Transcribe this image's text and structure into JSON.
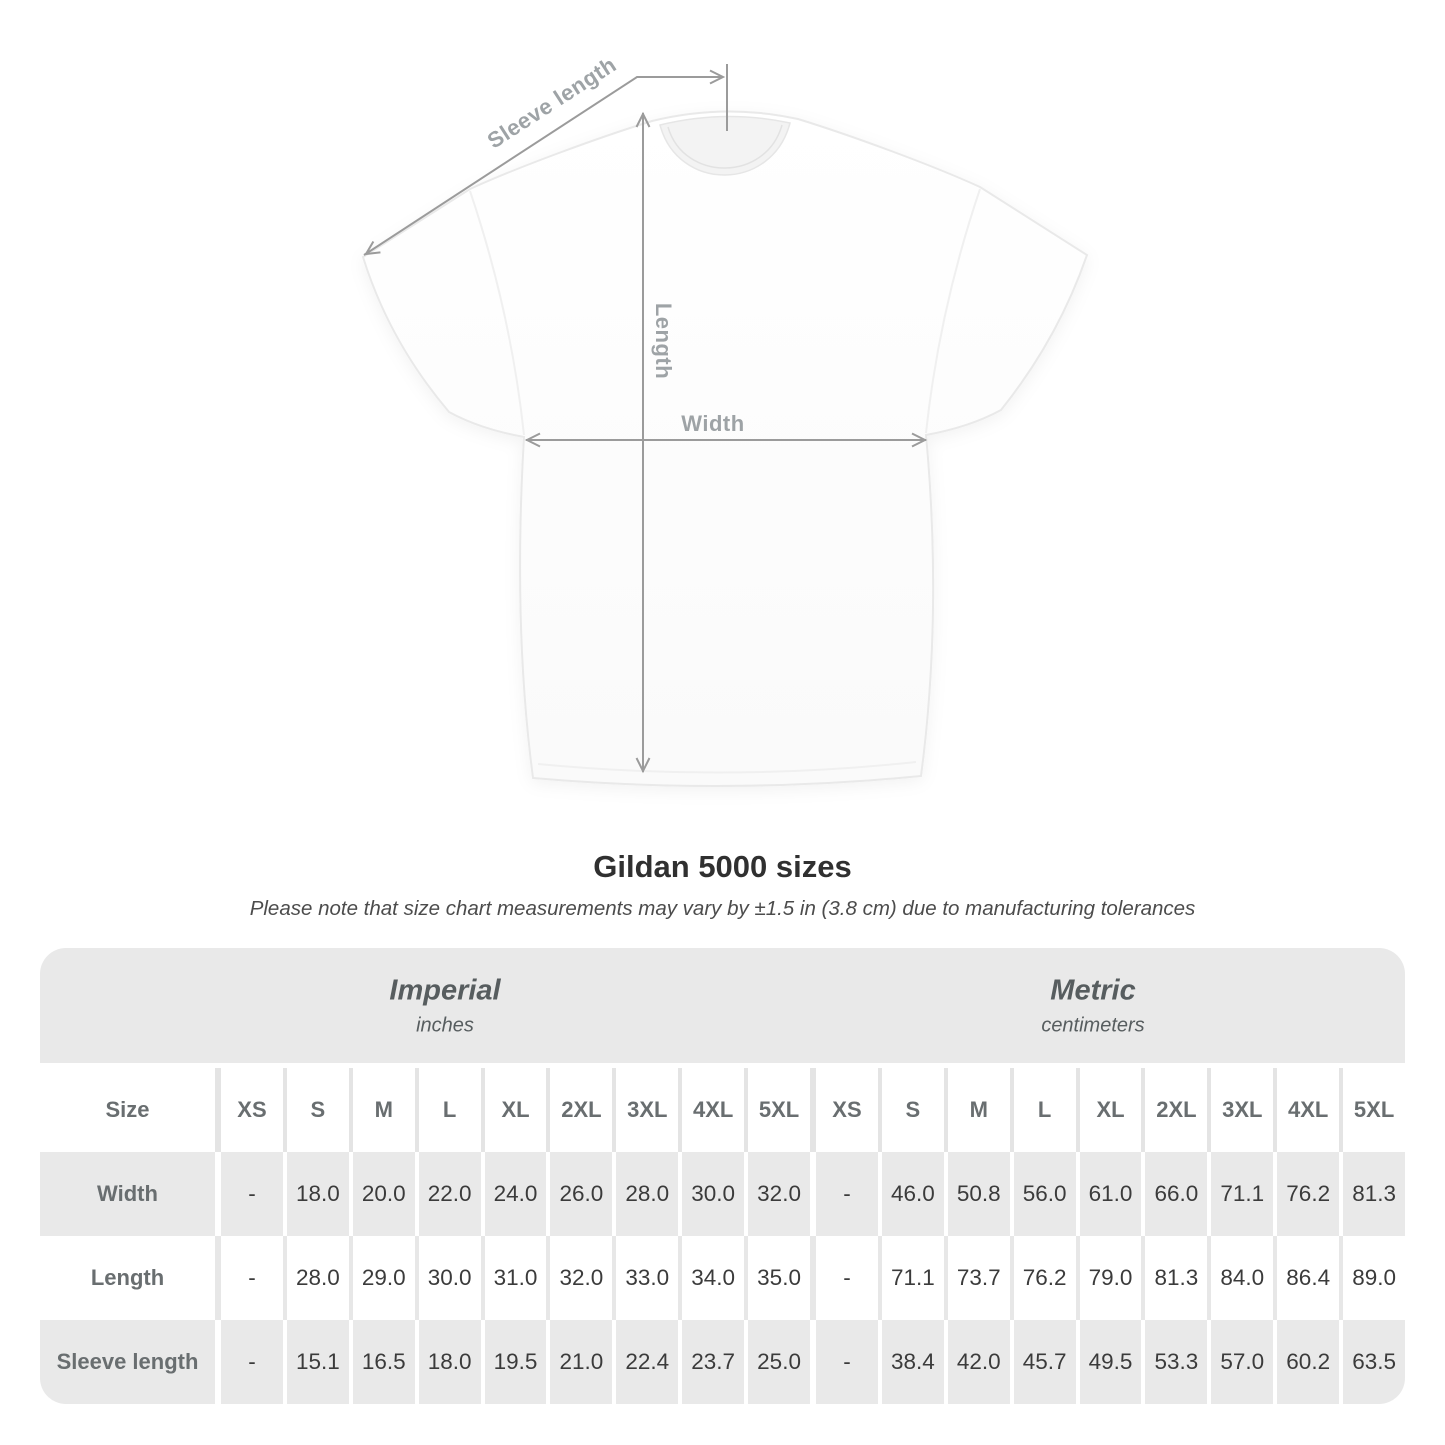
{
  "diagram": {
    "sleeve_length_label": "Sleeve length",
    "length_label": "Length",
    "width_label": "Width"
  },
  "title": "Gildan 5000 sizes",
  "subtitle": "Please note that size chart measurements may vary by ±1.5 in (3.8 cm) due to manufacturing tolerances",
  "table": {
    "size_header": "Size",
    "groups": [
      {
        "label": "Imperial",
        "sublabel": "inches"
      },
      {
        "label": "Metric",
        "sublabel": "centimeters"
      }
    ],
    "columns": [
      "XS",
      "S",
      "M",
      "L",
      "XL",
      "2XL",
      "3XL",
      "4XL",
      "5XL"
    ],
    "rows": [
      {
        "label": "Width",
        "imperial": [
          "-",
          "18.0",
          "20.0",
          "22.0",
          "24.0",
          "26.0",
          "28.0",
          "30.0",
          "32.0"
        ],
        "metric": [
          "-",
          "46.0",
          "50.8",
          "56.0",
          "61.0",
          "66.0",
          "71.1",
          "76.2",
          "81.3"
        ]
      },
      {
        "label": "Length",
        "imperial": [
          "-",
          "28.0",
          "29.0",
          "30.0",
          "31.0",
          "32.0",
          "33.0",
          "34.0",
          "35.0"
        ],
        "metric": [
          "-",
          "71.1",
          "73.7",
          "76.2",
          "79.0",
          "81.3",
          "84.0",
          "86.4",
          "89.0"
        ]
      },
      {
        "label": "Sleeve length",
        "imperial": [
          "-",
          "15.1",
          "16.5",
          "18.0",
          "19.5",
          "21.0",
          "22.4",
          "23.7",
          "25.0"
        ],
        "metric": [
          "-",
          "38.4",
          "42.0",
          "45.7",
          "49.5",
          "53.3",
          "57.0",
          "60.2",
          "63.5"
        ]
      }
    ]
  },
  "colors": {
    "table_band_bg": "#e9e9e9",
    "stripe_row_bg": "#e9e9e9",
    "dimension_line": "#9b9b9b",
    "dimension_label": "#9ea3a6",
    "header_text": "#696e70",
    "value_text": "#3b3b3b"
  }
}
